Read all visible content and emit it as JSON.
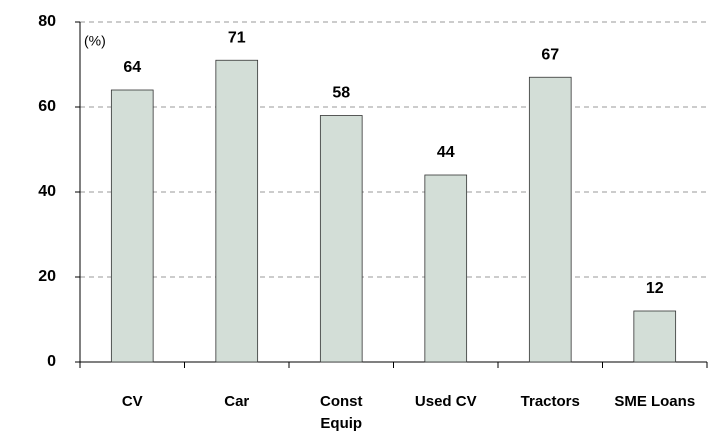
{
  "chart_data": {
    "type": "bar",
    "annotation": "(%)",
    "categories": [
      "CV",
      "Car",
      "Const Equip",
      "Used CV",
      "Tractors",
      "SME Loans"
    ],
    "values": [
      64,
      71,
      58,
      44,
      67,
      12
    ],
    "color": "#d3ded7",
    "ylim": [
      0,
      80
    ],
    "yticks": [
      0,
      20,
      40,
      60,
      80
    ],
    "grid": true
  }
}
